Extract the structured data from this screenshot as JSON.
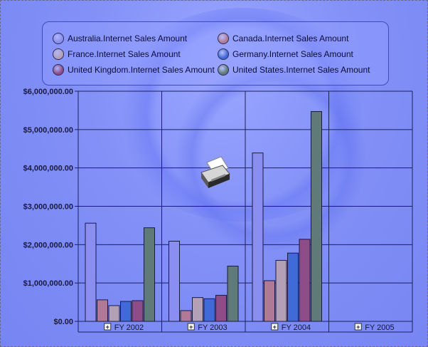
{
  "chart_data": {
    "type": "bar",
    "categories": [
      "FY 2002",
      "FY 2003",
      "FY 2004",
      "FY 2005"
    ],
    "category_buttons": [
      "+",
      "+",
      "+",
      "+"
    ],
    "series": [
      {
        "name": "Australia.Internet Sales Amount",
        "color": "#8a8ef0",
        "values": [
          2560000,
          2090000,
          4390000,
          0
        ]
      },
      {
        "name": "Canada.Internet Sales Amount",
        "color": "#b07a96",
        "values": [
          560000,
          280000,
          1060000,
          0
        ]
      },
      {
        "name": "France.Internet Sales Amount",
        "color": "#b4a0b6",
        "values": [
          410000,
          620000,
          1590000,
          0
        ]
      },
      {
        "name": "Germany.Internet Sales Amount",
        "color": "#3f6ad8",
        "values": [
          520000,
          590000,
          1780000,
          0
        ]
      },
      {
        "name": "United Kingdom.Internet Sales Amount",
        "color": "#8e4c88",
        "values": [
          540000,
          680000,
          2140000,
          0
        ]
      },
      {
        "name": "United States.Internet Sales Amount",
        "color": "#5f7a78",
        "values": [
          2440000,
          1440000,
          5470000,
          0
        ]
      }
    ],
    "ylim": [
      0,
      6000000
    ],
    "yticks": [
      "$0.00",
      "$1,000,000.00",
      "$2,000,000.00",
      "$3,000,000.00",
      "$4,000,000.00",
      "$5,000,000.00",
      "$6,000,000.00"
    ],
    "grid": true,
    "legend_position": "top"
  },
  "printer_icon": "printer-icon"
}
